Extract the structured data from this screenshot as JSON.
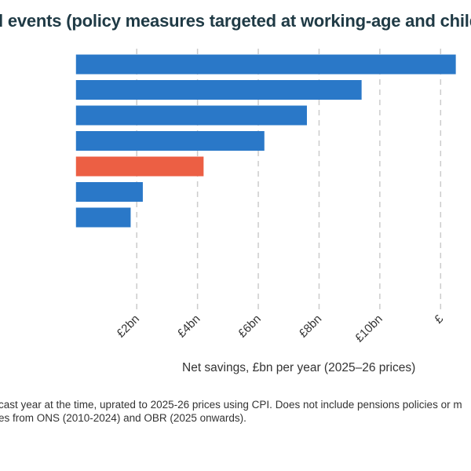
{
  "chart_data": {
    "type": "bar",
    "orientation": "horizontal",
    "title": "l events (policy measures targeted at working-age and child",
    "xlabel": "Net savings, £bn per year (2025–26 prices)",
    "ylabel": "",
    "xlim": [
      -2.5,
      13.0
    ],
    "grid": true,
    "x_ticks": [
      {
        "value": 2,
        "label": "£2bn"
      },
      {
        "value": 4,
        "label": "£4bn"
      },
      {
        "value": 6,
        "label": "£6bn"
      },
      {
        "value": 8,
        "label": "£8bn"
      },
      {
        "value": 10,
        "label": "£10bn"
      },
      {
        "value": 12,
        "label": "£"
      }
    ],
    "values": [
      12.5,
      9.4,
      7.6,
      6.2,
      4.2,
      2.2,
      1.8
    ],
    "highlight_index": 4,
    "colors": {
      "bar": "#2a78c8",
      "highlight": "#ec5f44",
      "grid": "#cccccc"
    }
  },
  "notes": {
    "line1": "cast year at the time, uprated to 2025-26 prices using CPI. Does not include pensions policies or m",
    "line2": "es from ONS (2010-2024) and OBR (2025 onwards)."
  }
}
